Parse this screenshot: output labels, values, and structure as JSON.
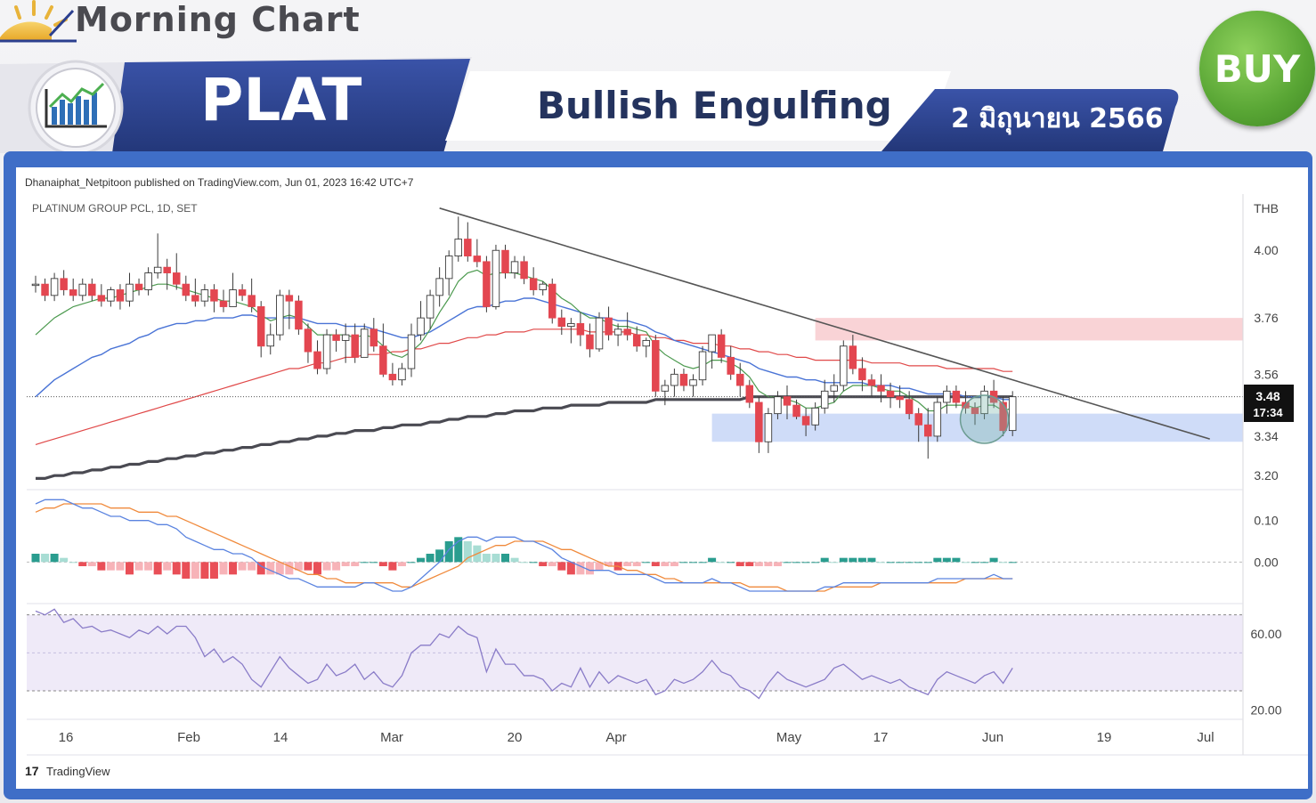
{
  "header": {
    "brand": "Morning Chart",
    "ticker": "PLAT",
    "pattern": "Bullish Engulfing",
    "date": "2 มิถุนายน 2566",
    "signal": "BUY"
  },
  "chart_meta": {
    "published": "Dhanaiphat_Netpitoon published on TradingView.com, Jun 01, 2023 16:42 UTC+7",
    "symbol": "PLATINUM GROUP PCL, 1D, SET",
    "currency": "THB",
    "last_price": "3.48",
    "countdown": "17:34",
    "watermark": "TradingView"
  },
  "colors": {
    "up": "#ffffff",
    "down": "#e34650",
    "ema_fast": "#4c9a4f",
    "ema_mid": "#4a74d6",
    "ema_slow": "#e04848",
    "ema_long": "#4a4a52",
    "trendline": "#555555",
    "resistance_zone": "#f9d3d6",
    "support_zone": "#cfdcf8",
    "macd": "#5b84e0",
    "signal": "#f08a3c",
    "rsi": "#8a7cc8",
    "banner_blue": "#2b3f8f",
    "buy_green": "#58a534"
  },
  "chart_data": {
    "type": "candlestick",
    "x_tick_labels": [
      "16",
      "Feb",
      "14",
      "Mar",
      "20",
      "Apr",
      "May",
      "17",
      "Jun",
      "19",
      "Jul"
    ],
    "price_axis": {
      "ticks": [
        4.0,
        3.76,
        3.56,
        3.34,
        3.2
      ],
      "range": [
        3.15,
        4.2
      ]
    },
    "macd_axis": {
      "ticks": [
        0.1,
        0.0
      ],
      "range": [
        -0.1,
        0.17
      ]
    },
    "rsi_axis": {
      "ticks": [
        60.0,
        20.0
      ],
      "range": [
        15,
        75
      ],
      "bands": [
        70,
        30
      ],
      "mid": 50
    },
    "candles": [
      [
        3.88,
        3.91,
        3.85,
        3.88
      ],
      [
        3.88,
        3.9,
        3.82,
        3.84
      ],
      [
        3.84,
        3.92,
        3.82,
        3.9
      ],
      [
        3.9,
        3.93,
        3.84,
        3.86
      ],
      [
        3.86,
        3.9,
        3.82,
        3.84
      ],
      [
        3.84,
        3.9,
        3.82,
        3.88
      ],
      [
        3.88,
        3.9,
        3.82,
        3.84
      ],
      [
        3.84,
        3.88,
        3.8,
        3.82
      ],
      [
        3.82,
        3.87,
        3.8,
        3.86
      ],
      [
        3.86,
        3.88,
        3.79,
        3.82
      ],
      [
        3.82,
        3.92,
        3.8,
        3.88
      ],
      [
        3.88,
        3.9,
        3.84,
        3.86
      ],
      [
        3.86,
        3.94,
        3.84,
        3.92
      ],
      [
        3.92,
        4.06,
        3.9,
        3.94
      ],
      [
        3.94,
        3.97,
        3.86,
        3.92
      ],
      [
        3.92,
        3.99,
        3.86,
        3.88
      ],
      [
        3.88,
        3.91,
        3.82,
        3.84
      ],
      [
        3.84,
        3.9,
        3.8,
        3.82
      ],
      [
        3.82,
        3.88,
        3.8,
        3.86
      ],
      [
        3.86,
        3.88,
        3.78,
        3.82
      ],
      [
        3.82,
        3.86,
        3.78,
        3.8
      ],
      [
        3.8,
        3.92,
        3.8,
        3.86
      ],
      [
        3.86,
        3.88,
        3.82,
        3.84
      ],
      [
        3.84,
        3.9,
        3.78,
        3.8
      ],
      [
        3.8,
        3.82,
        3.62,
        3.66
      ],
      [
        3.66,
        3.74,
        3.63,
        3.7
      ],
      [
        3.7,
        3.86,
        3.68,
        3.84
      ],
      [
        3.84,
        3.86,
        3.72,
        3.82
      ],
      [
        3.82,
        3.84,
        3.7,
        3.72
      ],
      [
        3.72,
        3.74,
        3.6,
        3.64
      ],
      [
        3.64,
        3.68,
        3.56,
        3.58
      ],
      [
        3.58,
        3.72,
        3.56,
        3.7
      ],
      [
        3.7,
        3.72,
        3.64,
        3.68
      ],
      [
        3.68,
        3.74,
        3.6,
        3.7
      ],
      [
        3.7,
        3.74,
        3.6,
        3.62
      ],
      [
        3.62,
        3.74,
        3.62,
        3.72
      ],
      [
        3.72,
        3.76,
        3.64,
        3.66
      ],
      [
        3.66,
        3.74,
        3.55,
        3.56
      ],
      [
        3.56,
        3.6,
        3.52,
        3.54
      ],
      [
        3.54,
        3.6,
        3.52,
        3.58
      ],
      [
        3.58,
        3.74,
        3.55,
        3.7
      ],
      [
        3.7,
        3.82,
        3.68,
        3.76
      ],
      [
        3.76,
        3.86,
        3.72,
        3.84
      ],
      [
        3.84,
        3.94,
        3.8,
        3.9
      ],
      [
        3.9,
        4.0,
        3.84,
        3.98
      ],
      [
        3.98,
        4.12,
        3.96,
        4.04
      ],
      [
        4.04,
        4.1,
        3.96,
        3.98
      ],
      [
        3.98,
        4.04,
        3.94,
        3.96
      ],
      [
        3.96,
        3.98,
        3.78,
        3.8
      ],
      [
        3.8,
        4.02,
        3.79,
        4.0
      ],
      [
        4.0,
        4.02,
        3.9,
        3.92
      ],
      [
        3.92,
        3.98,
        3.9,
        3.96
      ],
      [
        3.96,
        3.98,
        3.88,
        3.9
      ],
      [
        3.9,
        3.94,
        3.84,
        3.86
      ],
      [
        3.86,
        3.89,
        3.84,
        3.88
      ],
      [
        3.88,
        3.9,
        3.74,
        3.76
      ],
      [
        3.76,
        3.79,
        3.7,
        3.73
      ],
      [
        3.73,
        3.76,
        3.67,
        3.74
      ],
      [
        3.74,
        3.78,
        3.66,
        3.7
      ],
      [
        3.7,
        3.74,
        3.62,
        3.65
      ],
      [
        3.65,
        3.78,
        3.64,
        3.76
      ],
      [
        3.76,
        3.8,
        3.68,
        3.7
      ],
      [
        3.7,
        3.74,
        3.66,
        3.72
      ],
      [
        3.72,
        3.78,
        3.68,
        3.7
      ],
      [
        3.7,
        3.73,
        3.64,
        3.66
      ],
      [
        3.66,
        3.69,
        3.62,
        3.68
      ],
      [
        3.68,
        3.7,
        3.48,
        3.5
      ],
      [
        3.5,
        3.54,
        3.45,
        3.52
      ],
      [
        3.52,
        3.58,
        3.48,
        3.56
      ],
      [
        3.56,
        3.58,
        3.5,
        3.52
      ],
      [
        3.52,
        3.56,
        3.48,
        3.54
      ],
      [
        3.54,
        3.66,
        3.52,
        3.64
      ],
      [
        3.64,
        3.7,
        3.58,
        3.7
      ],
      [
        3.7,
        3.72,
        3.6,
        3.62
      ],
      [
        3.62,
        3.66,
        3.54,
        3.56
      ],
      [
        3.56,
        3.6,
        3.48,
        3.52
      ],
      [
        3.52,
        3.54,
        3.44,
        3.46
      ],
      [
        3.46,
        3.48,
        3.28,
        3.32
      ],
      [
        3.32,
        3.44,
        3.28,
        3.42
      ],
      [
        3.42,
        3.5,
        3.4,
        3.48
      ],
      [
        3.48,
        3.52,
        3.4,
        3.45
      ],
      [
        3.45,
        3.47,
        3.4,
        3.41
      ],
      [
        3.41,
        3.44,
        3.34,
        3.38
      ],
      [
        3.38,
        3.46,
        3.36,
        3.44
      ],
      [
        3.44,
        3.54,
        3.42,
        3.5
      ],
      [
        3.5,
        3.56,
        3.46,
        3.52
      ],
      [
        3.52,
        3.68,
        3.5,
        3.66
      ],
      [
        3.66,
        3.7,
        3.56,
        3.58
      ],
      [
        3.58,
        3.62,
        3.5,
        3.54
      ],
      [
        3.54,
        3.56,
        3.48,
        3.52
      ],
      [
        3.52,
        3.56,
        3.46,
        3.5
      ],
      [
        3.5,
        3.53,
        3.44,
        3.48
      ],
      [
        3.48,
        3.52,
        3.44,
        3.47
      ],
      [
        3.47,
        3.5,
        3.4,
        3.42
      ],
      [
        3.42,
        3.44,
        3.32,
        3.38
      ],
      [
        3.38,
        3.44,
        3.26,
        3.34
      ],
      [
        3.34,
        3.48,
        3.32,
        3.46
      ],
      [
        3.46,
        3.52,
        3.42,
        3.5
      ],
      [
        3.5,
        3.52,
        3.44,
        3.46
      ],
      [
        3.46,
        3.5,
        3.42,
        3.44
      ],
      [
        3.44,
        3.46,
        3.38,
        3.42
      ],
      [
        3.42,
        3.52,
        3.4,
        3.5
      ],
      [
        3.5,
        3.54,
        3.44,
        3.46
      ],
      [
        3.46,
        3.48,
        3.34,
        3.36
      ],
      [
        3.36,
        3.5,
        3.34,
        3.48
      ]
    ],
    "ema_fast": [
      3.7,
      3.73,
      3.76,
      3.78,
      3.8,
      3.81,
      3.82,
      3.83,
      3.83,
      3.84,
      3.85,
      3.86,
      3.87,
      3.88,
      3.88,
      3.87,
      3.86,
      3.85,
      3.84,
      3.83,
      3.82,
      3.82,
      3.81,
      3.8,
      3.77,
      3.75,
      3.76,
      3.77,
      3.76,
      3.73,
      3.7,
      3.7,
      3.7,
      3.7,
      3.69,
      3.7,
      3.69,
      3.66,
      3.63,
      3.62,
      3.64,
      3.67,
      3.72,
      3.78,
      3.83,
      3.89,
      3.92,
      3.93,
      3.91,
      3.92,
      3.92,
      3.92,
      3.91,
      3.9,
      3.89,
      3.86,
      3.83,
      3.81,
      3.78,
      3.76,
      3.76,
      3.74,
      3.73,
      3.73,
      3.72,
      3.71,
      3.66,
      3.63,
      3.61,
      3.59,
      3.58,
      3.59,
      3.61,
      3.61,
      3.6,
      3.58,
      3.55,
      3.5,
      3.48,
      3.48,
      3.47,
      3.46,
      3.44,
      3.44,
      3.45,
      3.46,
      3.5,
      3.52,
      3.52,
      3.52,
      3.51,
      3.5,
      3.5,
      3.48,
      3.46,
      3.43,
      3.43,
      3.45,
      3.45,
      3.45,
      3.44,
      3.45,
      3.45,
      3.43,
      3.44
    ],
    "ema_mid": [
      3.48,
      3.51,
      3.54,
      3.56,
      3.58,
      3.6,
      3.62,
      3.63,
      3.65,
      3.66,
      3.67,
      3.69,
      3.7,
      3.72,
      3.73,
      3.74,
      3.74,
      3.75,
      3.75,
      3.76,
      3.76,
      3.76,
      3.77,
      3.77,
      3.76,
      3.76,
      3.76,
      3.76,
      3.76,
      3.75,
      3.74,
      3.74,
      3.74,
      3.73,
      3.73,
      3.73,
      3.72,
      3.71,
      3.7,
      3.69,
      3.69,
      3.7,
      3.71,
      3.73,
      3.75,
      3.77,
      3.79,
      3.8,
      3.8,
      3.81,
      3.82,
      3.82,
      3.83,
      3.83,
      3.82,
      3.81,
      3.8,
      3.79,
      3.78,
      3.77,
      3.76,
      3.76,
      3.75,
      3.75,
      3.74,
      3.73,
      3.71,
      3.7,
      3.68,
      3.67,
      3.66,
      3.65,
      3.64,
      3.63,
      3.62,
      3.61,
      3.6,
      3.58,
      3.57,
      3.56,
      3.55,
      3.55,
      3.54,
      3.54,
      3.53,
      3.53,
      3.53,
      3.53,
      3.53,
      3.52,
      3.52,
      3.52,
      3.51,
      3.51,
      3.5,
      3.49,
      3.49,
      3.49,
      3.49,
      3.48,
      3.48,
      3.48,
      3.48,
      3.47,
      3.47
    ],
    "ema_slow": [
      3.31,
      3.32,
      3.33,
      3.34,
      3.35,
      3.36,
      3.37,
      3.38,
      3.39,
      3.4,
      3.41,
      3.42,
      3.43,
      3.44,
      3.45,
      3.46,
      3.47,
      3.48,
      3.49,
      3.5,
      3.51,
      3.52,
      3.53,
      3.54,
      3.55,
      3.56,
      3.57,
      3.58,
      3.58,
      3.59,
      3.6,
      3.6,
      3.61,
      3.62,
      3.62,
      3.63,
      3.63,
      3.63,
      3.64,
      3.64,
      3.65,
      3.65,
      3.66,
      3.67,
      3.67,
      3.68,
      3.69,
      3.69,
      3.7,
      3.7,
      3.71,
      3.71,
      3.71,
      3.72,
      3.72,
      3.72,
      3.72,
      3.72,
      3.72,
      3.71,
      3.71,
      3.71,
      3.71,
      3.71,
      3.7,
      3.7,
      3.69,
      3.69,
      3.68,
      3.68,
      3.67,
      3.67,
      3.67,
      3.66,
      3.66,
      3.65,
      3.65,
      3.64,
      3.64,
      3.63,
      3.63,
      3.62,
      3.62,
      3.61,
      3.61,
      3.61,
      3.61,
      3.61,
      3.61,
      3.6,
      3.6,
      3.6,
      3.6,
      3.59,
      3.59,
      3.59,
      3.59,
      3.58,
      3.58,
      3.58,
      3.58,
      3.58,
      3.58,
      3.57,
      3.57
    ],
    "ema_long": [
      3.19,
      3.19,
      3.2,
      3.2,
      3.21,
      3.21,
      3.22,
      3.22,
      3.23,
      3.23,
      3.24,
      3.24,
      3.25,
      3.25,
      3.26,
      3.26,
      3.27,
      3.27,
      3.28,
      3.28,
      3.29,
      3.29,
      3.3,
      3.3,
      3.31,
      3.31,
      3.32,
      3.32,
      3.33,
      3.33,
      3.34,
      3.34,
      3.35,
      3.35,
      3.36,
      3.36,
      3.36,
      3.37,
      3.37,
      3.38,
      3.38,
      3.38,
      3.39,
      3.39,
      3.4,
      3.4,
      3.41,
      3.41,
      3.41,
      3.42,
      3.42,
      3.43,
      3.43,
      3.43,
      3.44,
      3.44,
      3.44,
      3.45,
      3.45,
      3.45,
      3.45,
      3.46,
      3.46,
      3.46,
      3.46,
      3.46,
      3.47,
      3.47,
      3.47,
      3.47,
      3.47,
      3.47,
      3.47,
      3.47,
      3.47,
      3.47,
      3.48,
      3.48,
      3.48,
      3.48,
      3.48,
      3.48,
      3.48,
      3.48,
      3.48,
      3.48,
      3.48,
      3.48,
      3.48,
      3.48,
      3.48,
      3.48,
      3.48,
      3.48,
      3.48,
      3.48,
      3.48,
      3.48,
      3.48,
      3.48,
      3.48,
      3.48,
      3.48,
      3.48,
      3.48
    ],
    "trendline": {
      "from": [
        43,
        4.15
      ],
      "to": [
        125,
        3.33
      ]
    },
    "resistance_zone": {
      "start": 83,
      "end": 125,
      "low": 3.68,
      "high": 3.76
    },
    "support_zone": {
      "start": 72,
      "end": 125,
      "low": 3.32,
      "high": 3.42
    },
    "highlight_circle": {
      "center": [
        101,
        3.4
      ]
    },
    "macd": [
      0.14,
      0.15,
      0.15,
      0.15,
      0.14,
      0.13,
      0.13,
      0.12,
      0.11,
      0.11,
      0.1,
      0.1,
      0.1,
      0.09,
      0.09,
      0.08,
      0.06,
      0.05,
      0.04,
      0.03,
      0.03,
      0.02,
      0.02,
      0.01,
      -0.01,
      -0.02,
      -0.03,
      -0.04,
      -0.04,
      -0.05,
      -0.06,
      -0.06,
      -0.06,
      -0.06,
      -0.06,
      -0.05,
      -0.05,
      -0.06,
      -0.07,
      -0.07,
      -0.06,
      -0.04,
      -0.02,
      0.0,
      0.03,
      0.05,
      0.06,
      0.06,
      0.05,
      0.06,
      0.06,
      0.06,
      0.05,
      0.05,
      0.04,
      0.03,
      0.01,
      0.0,
      -0.01,
      -0.02,
      -0.02,
      -0.02,
      -0.03,
      -0.03,
      -0.03,
      -0.03,
      -0.04,
      -0.05,
      -0.05,
      -0.05,
      -0.05,
      -0.05,
      -0.04,
      -0.05,
      -0.05,
      -0.06,
      -0.07,
      -0.07,
      -0.07,
      -0.07,
      -0.07,
      -0.07,
      -0.07,
      -0.07,
      -0.06,
      -0.06,
      -0.05,
      -0.05,
      -0.05,
      -0.05,
      -0.05,
      -0.05,
      -0.05,
      -0.05,
      -0.05,
      -0.05,
      -0.04,
      -0.04,
      -0.04,
      -0.04,
      -0.04,
      -0.04,
      -0.03,
      -0.04,
      -0.04
    ],
    "macd_signal": [
      0.12,
      0.13,
      0.13,
      0.14,
      0.14,
      0.14,
      0.14,
      0.14,
      0.13,
      0.13,
      0.13,
      0.12,
      0.12,
      0.12,
      0.11,
      0.11,
      0.1,
      0.09,
      0.08,
      0.07,
      0.06,
      0.05,
      0.04,
      0.03,
      0.02,
      0.01,
      0.0,
      -0.01,
      -0.02,
      -0.03,
      -0.03,
      -0.04,
      -0.04,
      -0.05,
      -0.05,
      -0.05,
      -0.05,
      -0.05,
      -0.05,
      -0.06,
      -0.06,
      -0.05,
      -0.04,
      -0.03,
      -0.02,
      -0.01,
      0.01,
      0.02,
      0.03,
      0.04,
      0.04,
      0.05,
      0.05,
      0.05,
      0.05,
      0.04,
      0.03,
      0.03,
      0.02,
      0.01,
      0.0,
      -0.01,
      -0.01,
      -0.02,
      -0.02,
      -0.03,
      -0.03,
      -0.04,
      -0.04,
      -0.05,
      -0.05,
      -0.05,
      -0.05,
      -0.05,
      -0.05,
      -0.05,
      -0.06,
      -0.06,
      -0.06,
      -0.06,
      -0.07,
      -0.07,
      -0.07,
      -0.07,
      -0.07,
      -0.06,
      -0.06,
      -0.06,
      -0.06,
      -0.06,
      -0.05,
      -0.05,
      -0.05,
      -0.05,
      -0.05,
      -0.05,
      -0.05,
      -0.05,
      -0.05,
      -0.04,
      -0.04,
      -0.04,
      -0.04,
      -0.04,
      -0.04
    ],
    "rsi": [
      72,
      70,
      73,
      66,
      68,
      63,
      64,
      61,
      62,
      60,
      58,
      62,
      60,
      64,
      60,
      64,
      64,
      58,
      48,
      52,
      45,
      48,
      44,
      36,
      32,
      40,
      48,
      42,
      38,
      34,
      36,
      44,
      38,
      40,
      44,
      36,
      40,
      34,
      32,
      38,
      50,
      54,
      54,
      60,
      58,
      64,
      60,
      58,
      40,
      52,
      44,
      44,
      38,
      38,
      36,
      30,
      34,
      32,
      42,
      32,
      40,
      34,
      38,
      36,
      34,
      36,
      28,
      30,
      36,
      34,
      36,
      40,
      46,
      40,
      38,
      32,
      30,
      26,
      34,
      40,
      36,
      34,
      32,
      34,
      36,
      42,
      44,
      40,
      36,
      38,
      36,
      34,
      36,
      32,
      30,
      28,
      36,
      40,
      38,
      36,
      34,
      38,
      40,
      34,
      42
    ]
  }
}
